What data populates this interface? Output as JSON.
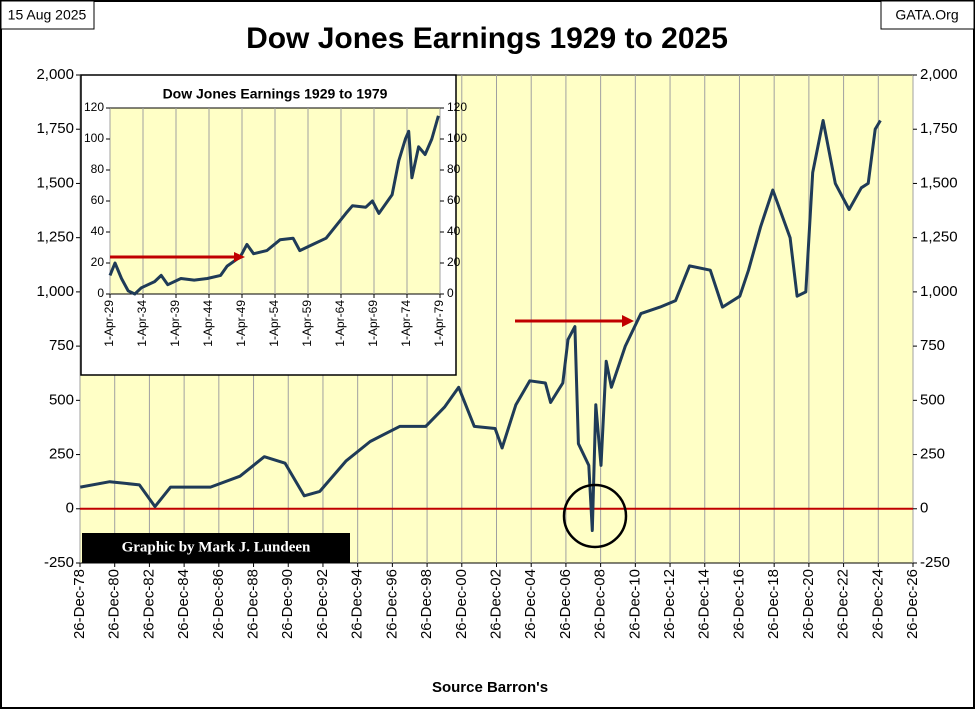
{
  "chart_data": [
    {
      "type": "line",
      "title": "Dow Jones Earnings 1929 to 2025",
      "date": "15 Aug 2025",
      "site": "GATA.Org",
      "xlabel": "Source Barron's",
      "credit": "Graphic by Mark J. Lundeen",
      "line_color": "#1f3b57",
      "background": "#ffffc6",
      "zero_line_color": "#c00000",
      "grid": "x",
      "right_axis": true,
      "xlim": [
        1978.98,
        2026.98
      ],
      "ylim": [
        -250,
        2000
      ],
      "yticks": [
        {
          "value": 2000,
          "label": "2,000"
        },
        {
          "value": 1750,
          "label": "1,750"
        },
        {
          "value": 1500,
          "label": "1,500"
        },
        {
          "value": 1250,
          "label": "1,250"
        },
        {
          "value": 1000,
          "label": "1,000"
        },
        750,
        500,
        250,
        0,
        -250
      ],
      "xticks": [
        {
          "value": 1978.98,
          "label": "26-Dec-78"
        },
        {
          "value": 1980.98,
          "label": "26-Dec-80"
        },
        {
          "value": 1982.98,
          "label": "26-Dec-82"
        },
        {
          "value": 1984.98,
          "label": "26-Dec-84"
        },
        {
          "value": 1986.98,
          "label": "26-Dec-86"
        },
        {
          "value": 1988.98,
          "label": "26-Dec-88"
        },
        {
          "value": 1990.98,
          "label": "26-Dec-90"
        },
        {
          "value": 1992.98,
          "label": "26-Dec-92"
        },
        {
          "value": 1994.98,
          "label": "26-Dec-94"
        },
        {
          "value": 1996.98,
          "label": "26-Dec-96"
        },
        {
          "value": 1998.98,
          "label": "26-Dec-98"
        },
        {
          "value": 2000.98,
          "label": "26-Dec-00"
        },
        {
          "value": 2002.98,
          "label": "26-Dec-02"
        },
        {
          "value": 2004.98,
          "label": "26-Dec-04"
        },
        {
          "value": 2006.98,
          "label": "26-Dec-06"
        },
        {
          "value": 2008.98,
          "label": "26-Dec-08"
        },
        {
          "value": 2010.98,
          "label": "26-Dec-10"
        },
        {
          "value": 2012.98,
          "label": "26-Dec-12"
        },
        {
          "value": 2014.98,
          "label": "26-Dec-14"
        },
        {
          "value": 2016.98,
          "label": "26-Dec-16"
        },
        {
          "value": 2018.98,
          "label": "26-Dec-18"
        },
        {
          "value": 2020.98,
          "label": "26-Dec-20"
        },
        {
          "value": 2022.98,
          "label": "26-Dec-22"
        },
        {
          "value": 2024.98,
          "label": "26-Dec-24"
        },
        {
          "value": 2026.98,
          "label": "26-Dec-26"
        }
      ],
      "x": [
        1979.0,
        1980.7,
        1982.4,
        1983.3,
        1984.2,
        1986.5,
        1988.2,
        1989.6,
        1990.8,
        1991.9,
        1992.8,
        1994.3,
        1995.7,
        1997.4,
        1998.9,
        2000.0,
        2000.8,
        2001.7,
        2002.9,
        2003.3,
        2004.1,
        2004.9,
        2005.8,
        2006.1,
        2006.8,
        2007.1,
        2007.5,
        2007.7,
        2008.3,
        2008.5,
        2008.7,
        2009.0,
        2009.3,
        2009.6,
        2010.4,
        2011.3,
        2012.4,
        2013.3,
        2014.1,
        2015.3,
        2016.0,
        2017.0,
        2017.5,
        2018.2,
        2018.9,
        2019.9,
        2020.3,
        2020.8,
        2021.2,
        2021.8,
        2022.5,
        2023.3,
        2024.0,
        2024.4,
        2024.8,
        2025.1
      ],
      "values": [
        100,
        125,
        110,
        10,
        100,
        100,
        150,
        240,
        210,
        60,
        80,
        220,
        310,
        380,
        380,
        470,
        560,
        380,
        370,
        280,
        480,
        590,
        580,
        490,
        580,
        780,
        840,
        300,
        200,
        -100,
        480,
        200,
        680,
        560,
        750,
        900,
        930,
        960,
        1120,
        1100,
        930,
        980,
        1100,
        1300,
        1470,
        1250,
        980,
        1000,
        1550,
        1790,
        1500,
        1380,
        1480,
        1500,
        1750,
        1790
      ]
    },
    {
      "type": "line",
      "title": "Dow Jones Earnings 1929 to 1979",
      "line_color": "#1f3b57",
      "background": "#ffffc6",
      "grid": "x",
      "right_axis": true,
      "xlim": [
        1929.25,
        1979.25
      ],
      "ylim": [
        0,
        120
      ],
      "yticks": [
        120,
        100,
        80,
        60,
        40,
        20,
        0
      ],
      "xticks": [
        {
          "value": 1929.25,
          "label": "1-Apr-29"
        },
        {
          "value": 1934.25,
          "label": "1-Apr-34"
        },
        {
          "value": 1939.25,
          "label": "1-Apr-39"
        },
        {
          "value": 1944.25,
          "label": "1-Apr-44"
        },
        {
          "value": 1949.25,
          "label": "1-Apr-49"
        },
        {
          "value": 1954.25,
          "label": "1-Apr-54"
        },
        {
          "value": 1959.25,
          "label": "1-Apr-59"
        },
        {
          "value": 1964.25,
          "label": "1-Apr-64"
        },
        {
          "value": 1969.25,
          "label": "1-Apr-69"
        },
        {
          "value": 1974.25,
          "label": "1-Apr-74"
        },
        {
          "value": 1979.25,
          "label": "1-Apr-79"
        }
      ],
      "x": [
        1929.25,
        1930,
        1931,
        1932,
        1933,
        1934,
        1936,
        1937,
        1938,
        1940,
        1942,
        1944,
        1946,
        1947,
        1949,
        1950,
        1951,
        1953,
        1955,
        1957,
        1958,
        1960,
        1962,
        1965,
        1966,
        1968,
        1969,
        1970,
        1972,
        1973,
        1974,
        1974.5,
        1975,
        1976,
        1977,
        1978,
        1979
      ],
      "values": [
        12,
        20,
        10,
        2,
        0,
        4,
        8,
        12,
        6,
        10,
        9,
        10,
        12,
        18,
        24,
        32,
        26,
        28,
        35,
        36,
        28,
        32,
        36,
        52,
        57,
        56,
        60,
        52,
        64,
        86,
        100,
        105,
        75,
        95,
        90,
        100,
        115
      ]
    }
  ]
}
